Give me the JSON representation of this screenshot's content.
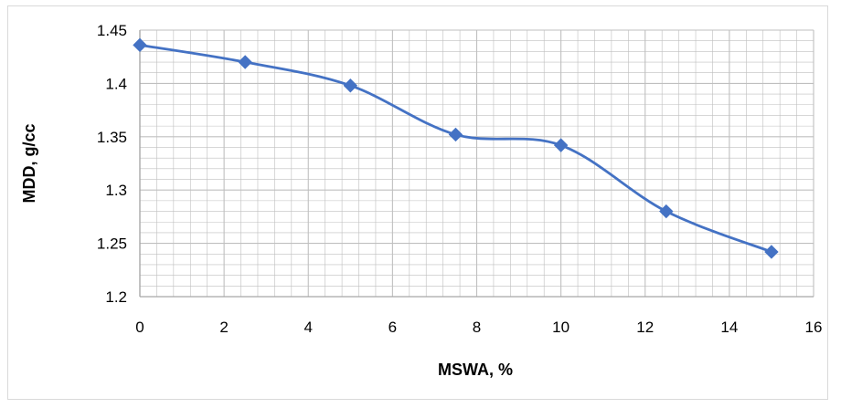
{
  "chart_data": {
    "type": "line",
    "title": "",
    "xlabel": "MSWA, %",
    "ylabel": "MDD, g/cc",
    "x": [
      0,
      2.5,
      5,
      7.5,
      10,
      12.5,
      15
    ],
    "series": [
      {
        "values": [
          1.436,
          1.42,
          1.398,
          1.352,
          1.342,
          1.28,
          1.242
        ]
      }
    ],
    "xlim": [
      0,
      16
    ],
    "ylim": [
      1.2,
      1.45
    ],
    "xticks": [
      0,
      2,
      4,
      6,
      8,
      10,
      12,
      14,
      16
    ],
    "yticks": [
      1.2,
      1.25,
      1.3,
      1.35,
      1.4,
      1.45
    ],
    "xtick_labels": [
      "0",
      "2",
      "4",
      "6",
      "8",
      "10",
      "12",
      "14",
      "16"
    ],
    "ytick_labels": [
      "1.2",
      "1.25",
      "1.3",
      "1.35",
      "1.4",
      "1.45"
    ],
    "grid": "major and minor",
    "marker": "diamond",
    "line_style": "smoothed",
    "colors": {
      "series": "#4472c4",
      "grid": "#bfbfbf",
      "axis": "#a6a6a6"
    }
  }
}
